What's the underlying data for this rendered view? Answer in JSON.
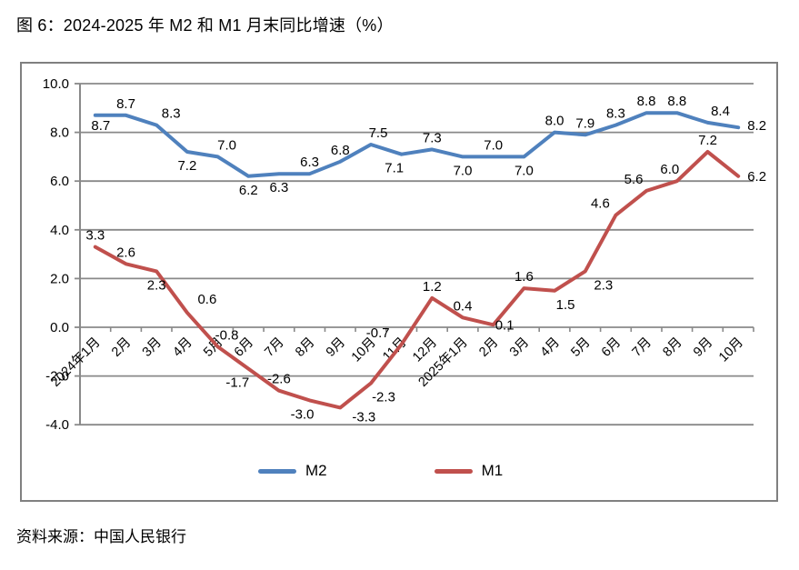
{
  "page": {
    "title": "图 6：2024-2025 年 M2 和 M1 月末同比增速（%）",
    "source": "资料来源：中国人民银行"
  },
  "chart_data": {
    "type": "line",
    "title": "2024-2025 年 M2 和 M1 月末同比增速（%）",
    "categories": [
      "2024年1月",
      "2月",
      "3月",
      "4月",
      "5月",
      "6月",
      "7月",
      "8月",
      "9月",
      "10月",
      "11月",
      "12月",
      "2025年1月",
      "2月",
      "3月",
      "4月",
      "5月",
      "6月",
      "7月",
      "8月",
      "9月",
      "10月"
    ],
    "series": [
      {
        "name": "M2",
        "color": "#4F81BD",
        "values": [
          8.7,
          8.7,
          8.3,
          7.2,
          7.0,
          6.2,
          6.3,
          6.3,
          6.8,
          7.5,
          7.1,
          7.3,
          7.0,
          7.0,
          7.0,
          8.0,
          7.9,
          8.3,
          8.8,
          8.8,
          8.4,
          8.2
        ],
        "label_pos": [
          "below",
          "above",
          "above",
          "below",
          "above",
          "below",
          "below",
          "above",
          "above",
          "above",
          "below",
          "above",
          "below",
          "above",
          "below",
          "above",
          "above",
          "above",
          "above",
          "above",
          "above",
          "right"
        ],
        "label_offsets": {
          "0": [
            6,
            -4
          ],
          "2": [
            16,
            0
          ],
          "4": [
            10,
            0
          ],
          "9": [
            8,
            0
          ],
          "10": [
            -8,
            0
          ],
          "20": [
            14,
            0
          ],
          "21": [
            0,
            -2
          ]
        }
      },
      {
        "name": "M1",
        "color": "#C0504D",
        "values": [
          3.3,
          2.6,
          2.3,
          0.6,
          -0.8,
          -1.7,
          -2.6,
          -3.0,
          -3.3,
          -2.3,
          -0.7,
          1.2,
          0.4,
          0.1,
          1.6,
          1.5,
          2.3,
          4.6,
          5.6,
          6.0,
          7.2,
          6.2
        ],
        "label_pos": [
          "above",
          "above",
          "below",
          "above",
          "above",
          "below",
          "above",
          "below",
          "below",
          "below",
          "above",
          "above",
          "above",
          "right",
          "above",
          "below",
          "below",
          "above",
          "above",
          "above",
          "above",
          "right"
        ],
        "label_offsets": {
          "3": [
            22,
            -2
          ],
          "4": [
            10,
            0
          ],
          "5": [
            -12,
            0
          ],
          "7": [
            -8,
            0
          ],
          "8": [
            26,
            -5
          ],
          "9": [
            14,
            0
          ],
          "10": [
            -26,
            0
          ],
          "13": [
            -8,
            0
          ],
          "15": [
            12,
            0
          ],
          "16": [
            20,
            0
          ],
          "17": [
            -17,
            0
          ],
          "18": [
            -14,
            0
          ],
          "19": [
            -8,
            0
          ]
        }
      }
    ],
    "ylim": [
      -4,
      10
    ],
    "ytick_step": 2,
    "yticks": [
      "10.0",
      "8.0",
      "6.0",
      "4.0",
      "2.0",
      "0.0",
      "-2.0",
      "-4.0"
    ],
    "grid": true,
    "legend_position": "bottom",
    "xlabel": "",
    "ylabel": "",
    "axis_color": "#898989",
    "text_color": "#000000"
  }
}
